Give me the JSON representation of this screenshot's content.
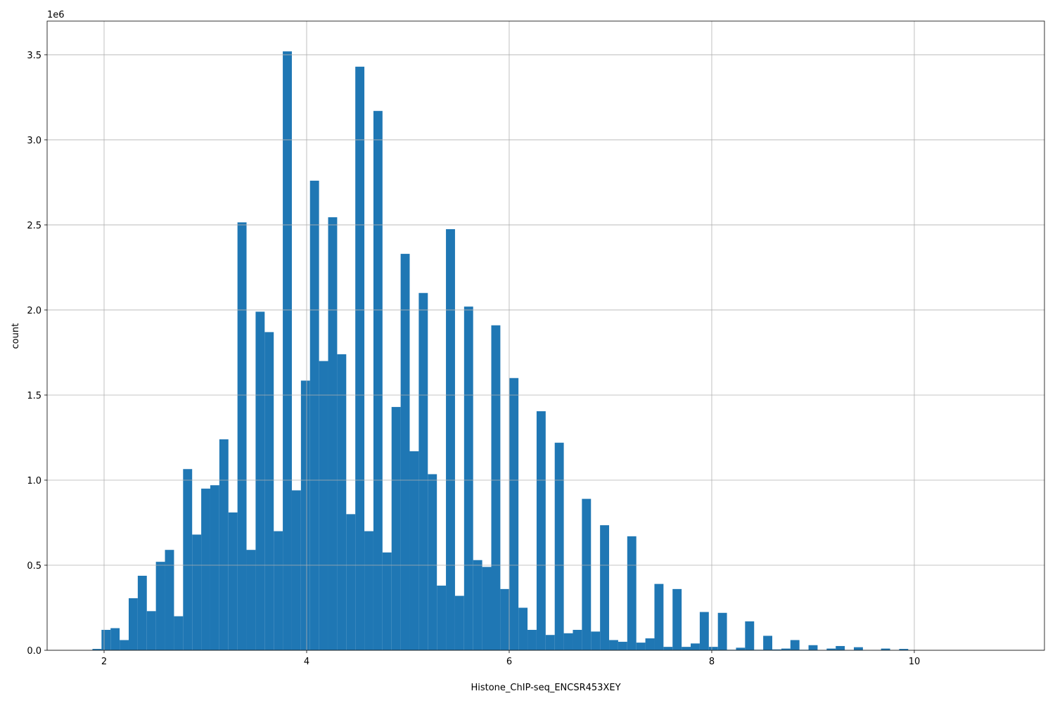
{
  "chart_data": {
    "type": "histogram",
    "xlabel": "Histone_ChIP-seq_ENCSR453XEY",
    "ylabel": "count",
    "y_offset_text": "1e6",
    "color": "#1f77b4",
    "grid": true,
    "bins": [
      1.885,
      1.9745,
      2.064,
      2.1535,
      2.243,
      2.3325,
      2.422,
      2.5115,
      2.601,
      2.6905,
      2.78,
      2.8695,
      2.959,
      3.0485,
      3.138,
      3.2275,
      3.317,
      3.4065,
      3.496,
      3.5855,
      3.675,
      3.7645,
      3.854,
      3.9435,
      4.033,
      4.1225,
      4.212,
      4.3015,
      4.391,
      4.4805,
      4.57,
      4.6595,
      4.749,
      4.8385,
      4.928,
      5.0175,
      5.107,
      5.1965,
      5.286,
      5.3755,
      5.465,
      5.5545,
      5.644,
      5.7335,
      5.823,
      5.9125,
      6.002,
      6.0915,
      6.181,
      6.2705,
      6.36,
      6.4495,
      6.539,
      6.6285,
      6.718,
      6.8075,
      6.897,
      6.9865,
      7.076,
      7.1655,
      7.255,
      7.3445,
      7.434,
      7.5235,
      7.613,
      7.7025,
      7.792,
      7.8815,
      7.971,
      8.0605,
      8.15,
      8.2395,
      8.329,
      8.4185,
      8.508,
      8.5975,
      8.687,
      8.7765,
      8.866,
      8.9555,
      9.045,
      9.1345,
      9.224,
      9.3135,
      9.403,
      9.4925,
      9.582,
      9.6715,
      9.761,
      9.8505,
      9.94,
      10.0295,
      10.119,
      10.2085,
      10.298,
      10.3875,
      10.477,
      10.5665,
      10.656,
      10.7455,
      10.835
    ],
    "counts": [
      8000,
      120000,
      130000,
      60000,
      306000,
      438000,
      230000,
      520000,
      590000,
      200000,
      1065000,
      680000,
      950000,
      970000,
      1240000,
      810000,
      2515000,
      590000,
      1990000,
      1870000,
      700000,
      3520000,
      940000,
      1585000,
      2760000,
      1700000,
      2545000,
      1740000,
      800000,
      3430000,
      700000,
      3170000,
      575000,
      1430000,
      2330000,
      1170000,
      2100000,
      1035000,
      380000,
      2475000,
      320000,
      2020000,
      530000,
      490000,
      1910000,
      360000,
      1600000,
      250000,
      120000,
      1405000,
      90000,
      1220000,
      100000,
      120000,
      890000,
      110000,
      735000,
      60000,
      50000,
      670000,
      45000,
      70000,
      390000,
      20000,
      360000,
      20000,
      40000,
      225000,
      20000,
      220000,
      3000,
      15000,
      170000,
      3000,
      85000,
      5000,
      10000,
      60000,
      3000,
      30000,
      2000,
      10000,
      25000,
      2000,
      18000,
      1000,
      2000,
      10000,
      1000,
      8000,
      1000,
      500,
      300,
      200,
      100,
      100,
      50,
      50,
      20,
      10
    ],
    "xlim": [
      1.4375,
      11.285
    ],
    "ylim": [
      0,
      3698000
    ],
    "xticks": [
      2,
      4,
      6,
      8,
      10
    ],
    "yticks": [
      {
        "value": 0,
        "label": "0.0"
      },
      {
        "value": 500000,
        "label": "0.5"
      },
      {
        "value": 1000000,
        "label": "1.0"
      },
      {
        "value": 1500000,
        "label": "1.5"
      },
      {
        "value": 2000000,
        "label": "2.0"
      },
      {
        "value": 2500000,
        "label": "2.5"
      },
      {
        "value": 3000000,
        "label": "3.0"
      },
      {
        "value": 3500000,
        "label": "3.5"
      }
    ]
  }
}
